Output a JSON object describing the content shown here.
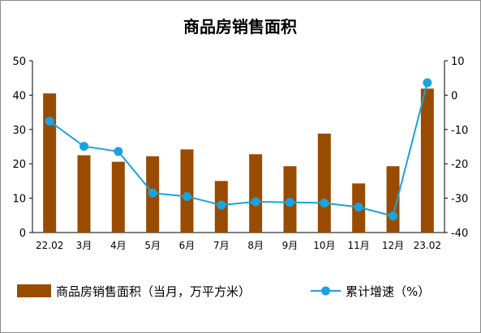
{
  "chart_data": {
    "type": "bar+line",
    "title": "商品房销售面积",
    "categories": [
      "22.02",
      "3月",
      "4月",
      "5月",
      "6月",
      "7月",
      "8月",
      "9月",
      "10月",
      "11月",
      "12月",
      "23.02"
    ],
    "series": [
      {
        "name": "商品房销售面积（当月，万平方米）",
        "type": "bar",
        "axis": "left",
        "color": "#994c00",
        "values": [
          40.5,
          22.5,
          20.6,
          22.2,
          24.2,
          15.0,
          22.8,
          19.3,
          28.8,
          14.3,
          19.3,
          41.9
        ]
      },
      {
        "name": "累计增速（%）",
        "type": "line",
        "axis": "right",
        "color": "#1aa3e0",
        "values": [
          -7.6,
          -14.9,
          -16.4,
          -28.5,
          -29.5,
          -32.0,
          -31.0,
          -31.2,
          -31.4,
          -32.6,
          -35.2,
          3.6
        ]
      }
    ],
    "y_left": {
      "ylim": [
        0,
        50
      ],
      "ticks": [
        "0",
        "10",
        "20",
        "30",
        "40",
        "50"
      ]
    },
    "y_right": {
      "ylim": [
        -40,
        10
      ],
      "ticks": [
        "-40",
        "-30",
        "-20",
        "-10",
        "0",
        "10"
      ]
    },
    "grid": false,
    "legend": "bottom"
  }
}
